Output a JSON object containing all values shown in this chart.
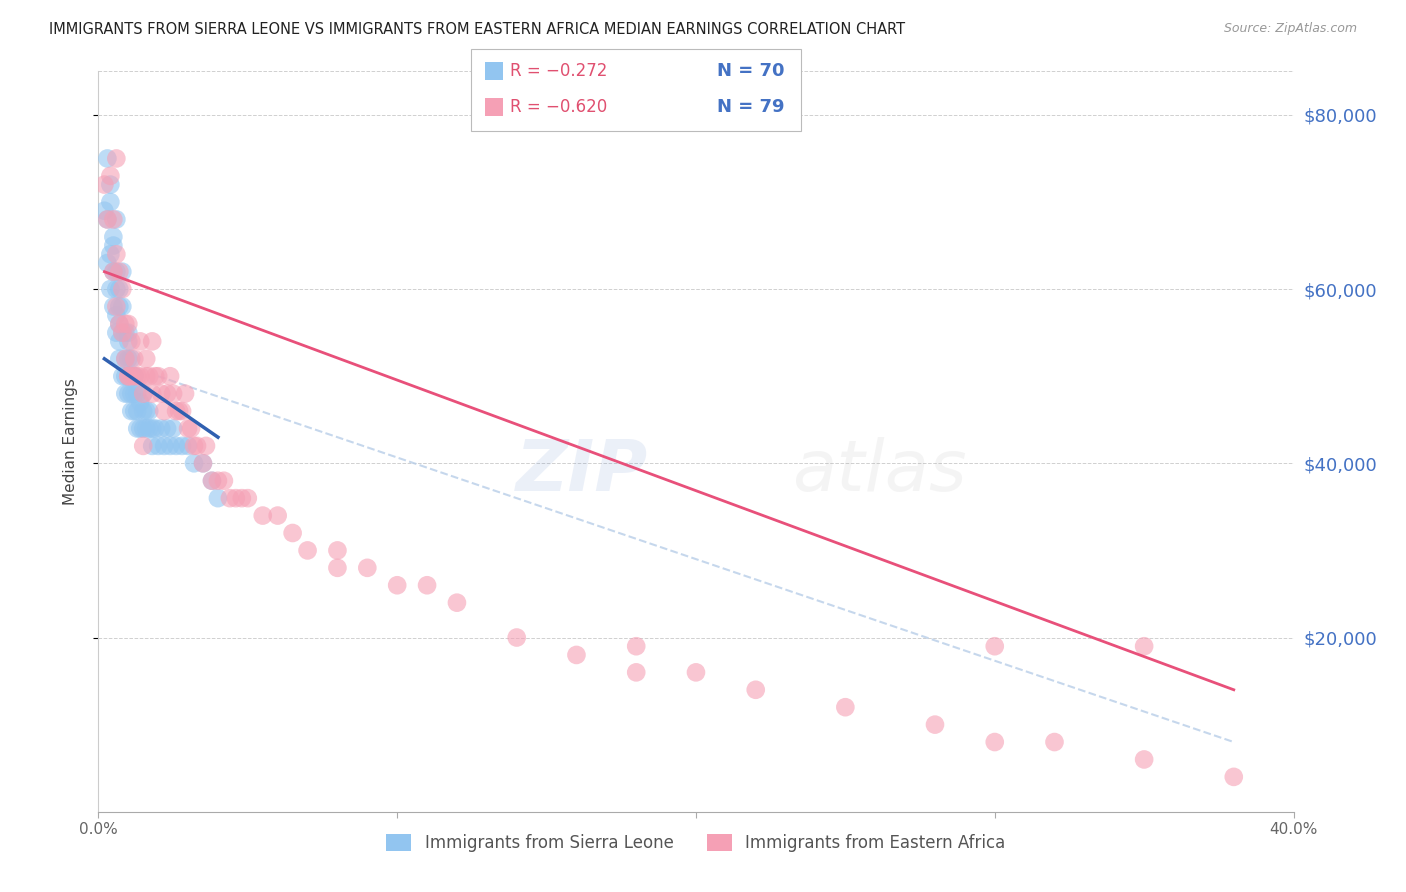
{
  "title": "IMMIGRANTS FROM SIERRA LEONE VS IMMIGRANTS FROM EASTERN AFRICA MEDIAN EARNINGS CORRELATION CHART",
  "source": "Source: ZipAtlas.com",
  "ylabel": "Median Earnings",
  "y_ticks": [
    20000,
    40000,
    60000,
    80000
  ],
  "y_tick_labels": [
    "$20,000",
    "$40,000",
    "$60,000",
    "$80,000"
  ],
  "ylim": [
    0,
    85000
  ],
  "xlim": [
    0.0,
    0.4
  ],
  "series1_label": "Immigrants from Sierra Leone",
  "series2_label": "Immigrants from Eastern Africa",
  "series1_color": "#92C5F0",
  "series2_color": "#F5A0B5",
  "series1_line_color": "#3060B0",
  "series2_line_color": "#E8507A",
  "dash_color": "#B8CEE8",
  "legend_r1": "R = −0.272",
  "legend_n1": "N = 70",
  "legend_r2": "R = −0.620",
  "legend_n2": "N = 79",
  "watermark_zip": "ZIP",
  "watermark_atlas": "atlas",
  "series1_x": [
    0.002,
    0.003,
    0.003,
    0.004,
    0.004,
    0.004,
    0.005,
    0.005,
    0.005,
    0.006,
    0.006,
    0.006,
    0.006,
    0.007,
    0.007,
    0.007,
    0.007,
    0.007,
    0.008,
    0.008,
    0.008,
    0.009,
    0.009,
    0.009,
    0.009,
    0.01,
    0.01,
    0.01,
    0.01,
    0.011,
    0.011,
    0.011,
    0.012,
    0.012,
    0.012,
    0.013,
    0.013,
    0.013,
    0.014,
    0.014,
    0.015,
    0.015,
    0.015,
    0.016,
    0.016,
    0.017,
    0.017,
    0.018,
    0.018,
    0.019,
    0.02,
    0.021,
    0.022,
    0.023,
    0.024,
    0.025,
    0.026,
    0.028,
    0.03,
    0.032,
    0.035,
    0.038,
    0.04,
    0.003,
    0.004,
    0.005,
    0.006,
    0.008,
    0.01,
    0.012
  ],
  "series1_y": [
    69000,
    63000,
    68000,
    64000,
    72000,
    60000,
    66000,
    62000,
    58000,
    57000,
    60000,
    55000,
    62000,
    58000,
    54000,
    56000,
    52000,
    60000,
    55000,
    50000,
    58000,
    52000,
    48000,
    55000,
    50000,
    52000,
    48000,
    50000,
    54000,
    48000,
    52000,
    46000,
    50000,
    46000,
    48000,
    46000,
    44000,
    48000,
    44000,
    47000,
    46000,
    44000,
    48000,
    44000,
    46000,
    44000,
    46000,
    44000,
    42000,
    44000,
    42000,
    44000,
    42000,
    44000,
    42000,
    44000,
    42000,
    42000,
    42000,
    40000,
    40000,
    38000,
    36000,
    75000,
    70000,
    65000,
    68000,
    62000,
    55000,
    50000
  ],
  "series2_x": [
    0.002,
    0.003,
    0.004,
    0.005,
    0.005,
    0.006,
    0.006,
    0.007,
    0.007,
    0.008,
    0.008,
    0.009,
    0.009,
    0.01,
    0.01,
    0.011,
    0.011,
    0.012,
    0.012,
    0.013,
    0.014,
    0.014,
    0.015,
    0.016,
    0.016,
    0.017,
    0.018,
    0.018,
    0.019,
    0.02,
    0.021,
    0.022,
    0.023,
    0.024,
    0.025,
    0.026,
    0.027,
    0.028,
    0.029,
    0.03,
    0.031,
    0.032,
    0.033,
    0.035,
    0.036,
    0.038,
    0.04,
    0.042,
    0.044,
    0.046,
    0.048,
    0.05,
    0.055,
    0.06,
    0.065,
    0.07,
    0.08,
    0.09,
    0.1,
    0.11,
    0.12,
    0.14,
    0.16,
    0.18,
    0.2,
    0.22,
    0.25,
    0.28,
    0.3,
    0.32,
    0.35,
    0.38,
    0.006,
    0.01,
    0.015,
    0.08,
    0.18,
    0.3,
    0.35
  ],
  "series2_y": [
    72000,
    68000,
    73000,
    68000,
    62000,
    64000,
    58000,
    62000,
    56000,
    60000,
    55000,
    56000,
    52000,
    56000,
    50000,
    54000,
    50000,
    52000,
    50000,
    50000,
    50000,
    54000,
    48000,
    50000,
    52000,
    50000,
    48000,
    54000,
    50000,
    50000,
    48000,
    46000,
    48000,
    50000,
    48000,
    46000,
    46000,
    46000,
    48000,
    44000,
    44000,
    42000,
    42000,
    40000,
    42000,
    38000,
    38000,
    38000,
    36000,
    36000,
    36000,
    36000,
    34000,
    34000,
    32000,
    30000,
    30000,
    28000,
    26000,
    26000,
    24000,
    20000,
    18000,
    16000,
    16000,
    14000,
    12000,
    10000,
    8000,
    8000,
    6000,
    4000,
    75000,
    50000,
    42000,
    28000,
    19000,
    19000,
    19000
  ],
  "series1_line_x": [
    0.002,
    0.04
  ],
  "series1_line_y": [
    52000,
    43000
  ],
  "series2_line_x": [
    0.002,
    0.38
  ],
  "series2_line_y": [
    62000,
    14000
  ],
  "dash_line_x": [
    0.02,
    0.38
  ],
  "dash_line_y": [
    50000,
    8000
  ]
}
